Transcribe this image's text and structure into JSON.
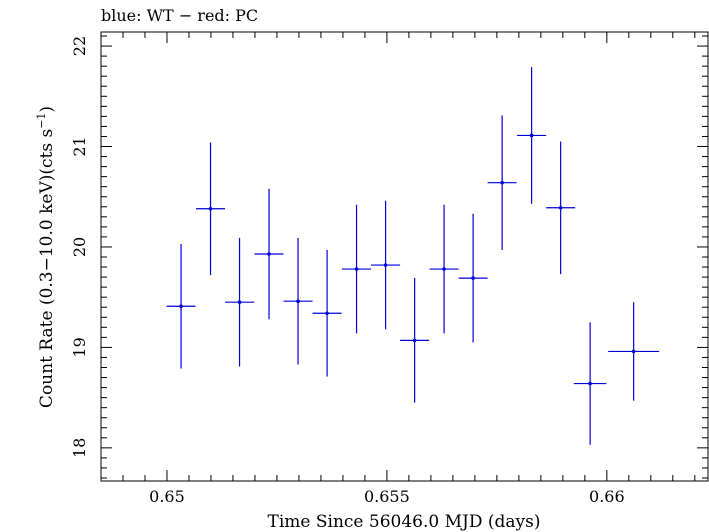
{
  "chart_data": {
    "type": "scatter",
    "title": "blue: WT − red: PC",
    "xlabel": "Time Since 56046.0 MJD (days)",
    "ylabel_main": "Count Rate (0.3−10.0 keV)(cts s",
    "ylabel_sup": "−1",
    "ylabel_end": ")",
    "xlim": [
      0.6485,
      0.6623
    ],
    "ylim": [
      17.67,
      22.14
    ],
    "x_ticks": [
      {
        "value": 0.65,
        "label": "0.65"
      },
      {
        "value": 0.655,
        "label": "0.655"
      },
      {
        "value": 0.66,
        "label": "0.66"
      }
    ],
    "y_ticks": [
      {
        "value": 18,
        "label": "18"
      },
      {
        "value": 19,
        "label": "19"
      },
      {
        "value": 20,
        "label": "20"
      },
      {
        "value": 21,
        "label": "21"
      },
      {
        "value": 22,
        "label": "22"
      }
    ],
    "series": [
      {
        "color": "#0000dd",
        "points": [
          {
            "x": 0.65032,
            "y": 19.41,
            "xerr": 0.00033,
            "yerr": 0.62
          },
          {
            "x": 0.65099,
            "y": 20.38,
            "xerr": 0.00033,
            "yerr": 0.66
          },
          {
            "x": 0.65165,
            "y": 19.45,
            "xerr": 0.00033,
            "yerr": 0.64
          },
          {
            "x": 0.65232,
            "y": 19.93,
            "xerr": 0.00033,
            "yerr": 0.65
          },
          {
            "x": 0.65298,
            "y": 19.46,
            "xerr": 0.00033,
            "yerr": 0.63
          },
          {
            "x": 0.65364,
            "y": 19.34,
            "xerr": 0.00033,
            "yerr": 0.63
          },
          {
            "x": 0.65431,
            "y": 19.78,
            "xerr": 0.00033,
            "yerr": 0.64
          },
          {
            "x": 0.65497,
            "y": 19.82,
            "xerr": 0.00033,
            "yerr": 0.64
          },
          {
            "x": 0.65563,
            "y": 19.07,
            "xerr": 0.00033,
            "yerr": 0.62
          },
          {
            "x": 0.6563,
            "y": 19.78,
            "xerr": 0.00033,
            "yerr": 0.64
          },
          {
            "x": 0.65696,
            "y": 19.69,
            "xerr": 0.00033,
            "yerr": 0.64
          },
          {
            "x": 0.65762,
            "y": 20.64,
            "xerr": 0.00033,
            "yerr": 0.67
          },
          {
            "x": 0.65829,
            "y": 21.11,
            "xerr": 0.00033,
            "yerr": 0.68
          },
          {
            "x": 0.65895,
            "y": 20.39,
            "xerr": 0.00033,
            "yerr": 0.66
          },
          {
            "x": 0.65962,
            "y": 18.64,
            "xerr": 0.00037,
            "yerr": 0.61
          },
          {
            "x": 0.66061,
            "y": 18.96,
            "xerr": 0.00058,
            "yerr": 0.49
          }
        ]
      }
    ]
  }
}
